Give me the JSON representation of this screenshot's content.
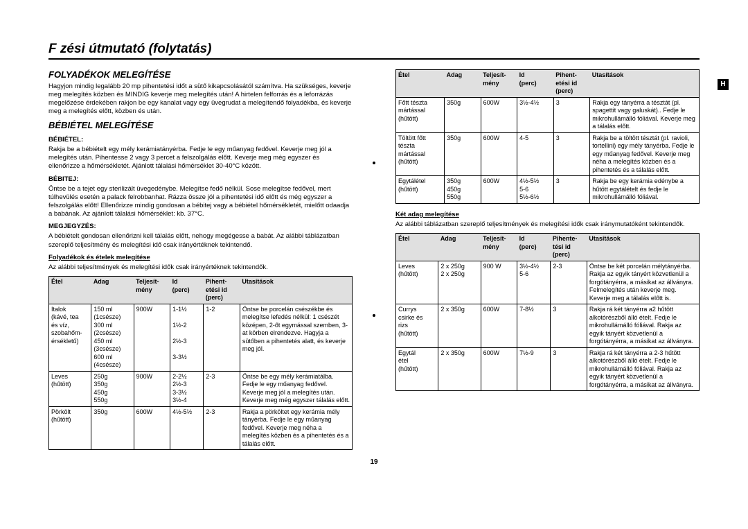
{
  "side_tab": "H",
  "page_number": "19",
  "title": "F  zési útmutató (folytatás)",
  "section_liquids": {
    "heading": "FOLYADÉKOK MELEGÍTÉSE",
    "text": "Hagyjon mindig legalább 20 mp pihentetési időt a sütő kikapcsolásától számítva. Ha szükséges, keverje meg melegítés közben és MINDIG keverje meg melegítés után! A hirtelen felforrás és a leforrázás megelőzése érdekében rakjon be egy kanalat vagy egy üvegrudat a melegítendő folyadékba, és keverje meg a melegítés előtt, közben és után."
  },
  "section_baby": {
    "heading": "BÉBIÉTEL MELEGÍTÉSE",
    "label_food": "BÉBIÉTEL:",
    "text_food": "Rakja be a bébiételt egy mély kerámiatányérba. Fedje le egy műanyag fedővel. Keverje meg jól a melegítés után. Pihentesse 2 vagy 3 percet a felszolgálás előtt. Keverje meg még egyszer és ellenőrizze a hőmérsékletét. Ajánlott tálalási hőmérséklet 30-40°C között.",
    "label_milk": "BÉBITEJ:",
    "text_milk": "Öntse be a tejet egy sterilizált üvegedénybe. Melegítse fedő nélkül. Sose melegítse fedővel, mert túlhevülés esetén a palack felrobbanhat. Rázza össze jól a pihentetési idő előtt és még egyszer a felszolgálás előtt! Ellenőrizze mindig gondosan a bébitej vagy a bébiétel hőmérsékletét, mielőtt odaadja a babának. Az ajánlott tálalási hőmérséklet: kb. 37°C.",
    "label_note": "MEGJEGYZÉS:",
    "text_note": "A bébiételt gondosan ellenőrizni kell tálalás előtt, nehogy megégesse a babát. Az alábbi táblázatban szereplő teljesítmény és melegítési idő csak irányértéknek tekintendő."
  },
  "section_reheat": {
    "heading": "Folyadékok és ételek melegítése",
    "intro": "Az alábbi teljesítmények és melegítési idők csak irányértéknek tekintendők."
  },
  "section_two": {
    "heading": "Két adag melegítése",
    "intro": "Az alábbi táblázatban szereplő teljesítmények és melegítési idők csak iránymutatóként tekintendők."
  },
  "table_headers": {
    "food": "Étel",
    "portion": "Adag",
    "power": "Teljesít-\nmény",
    "time": "Id\n(perc)",
    "rest": "Pihent-\netési id\n(perc)",
    "rest2": "Pihente-\ntési id\n(perc)",
    "instr": "Utasítások"
  },
  "table1": [
    {
      "food": "Italok\n(kávé, tea\nés víz,\nszobahőm-\nérsékletű)",
      "portion": "150 ml\n(1csésze)\n300 ml\n(2csésze)\n450 ml\n(3csésze)\n600 ml\n(4csésze)",
      "power": "900W",
      "time": "1-1½\n\n1½-2\n\n2½-3\n\n3-3½",
      "rest": "1-2",
      "instr": "Öntse be  porcelán csészékbe és melegítse lefedés nélkül: 1 csészét középen, 2-őt egymással szemben, 3-at körben elrendezve. Hagyja a sütőben a pihentetés alatt, és keverje meg jól."
    },
    {
      "food": "Leves\n(hűtött)",
      "portion": "250g\n350g\n450g\n550g",
      "power": "900W",
      "time": "2-2½\n2½-3\n3-3½\n3½-4",
      "rest": "2-3",
      "instr": "Öntse be egy mély kerámiatálba. Fedje le egy műanyag fedővel. Keverje meg jól a melegítés után. Keverje meg még egyszer tálalás előtt."
    },
    {
      "food": "Pörkölt\n(hűtött)",
      "portion": "350g",
      "power": "600W",
      "time": "4½-5½",
      "rest": "2-3",
      "instr": "Rakja a pörköltet egy kerámia mély tányérba. Fedje le egy műanyag fedővel. Keverje meg néha a melegítés közben és a pihentetés és a tálalás előtt."
    }
  ],
  "table2": [
    {
      "food": "Főtt tészta\nmártással\n(hűtött)",
      "portion": "350g",
      "power": "600W",
      "time": "3½-4½",
      "rest": "3",
      "instr": "Rakja egy tányérra a tésztát (pl. spagettit vagy galuskát).. Fedje le mikrohullámálló fóliával. Keverje meg a tálalás előtt."
    },
    {
      "food": "Töltött főtt\ntészta\nmártással\n(hűtött)",
      "portion": "350g",
      "power": "600W",
      "time": "4-5",
      "rest": "3",
      "instr": "Rakja be a töltött tésztát (pl. ravioli, tortellini) egy mély tányérba. Fedje le egy műanyag fedővel. Keverje meg néha a melegítés közben és a pihentetés és a tálalás előtt."
    },
    {
      "food": "Egytálétel\n(hűtött)",
      "portion": "350g\n450g\n550g",
      "power": "600W",
      "time": "4½-5½\n5-6\n5½-6½",
      "rest": "3",
      "instr": "Rakja be egy kerámia edénybe a hűtött egytálételt és fedje le mikrohullámálló fóliával."
    }
  ],
  "table3": [
    {
      "food": "Leves\n(hűtött)",
      "portion": "2 x 250g\n2 x 250g",
      "power": "900 W",
      "time": "3½-4½\n5-6",
      "rest": "2-3",
      "instr": "Öntse be két porcelán mélytányérba. Rakja az egyik tányért közvetlenül a forgótányérra, a másikat az állványra. Felmelegítés után keverje meg. Keverje meg a tálalás előtt is."
    },
    {
      "food": "Currys\ncsirke és\nrizs\n(hűtött)",
      "portion": "2 x 350g",
      "power": "600W",
      "time": "7-8½",
      "rest": "3",
      "instr": "Rakja rá két tányérra a2 hűtött alkotórészből álló ételt. Fedje le mikrohullámálló fóliával. Rakja az egyik  tányért közvetlenül a  forgótányérra, a másikat az állványra."
    },
    {
      "food": "Egytál\nétel\n(hűtött)",
      "portion": "2 x 350g",
      "power": "600W",
      "time": "7½-9",
      "rest": "3",
      "instr": "Rakja rá két tányérra a 2-3 hűtött alkotórészből álló ételt. Fedje le mikrohullámálló fóliával. Rakja az egyik tányért közvetlenül a forgótányérra, a másikat az állványra."
    }
  ]
}
